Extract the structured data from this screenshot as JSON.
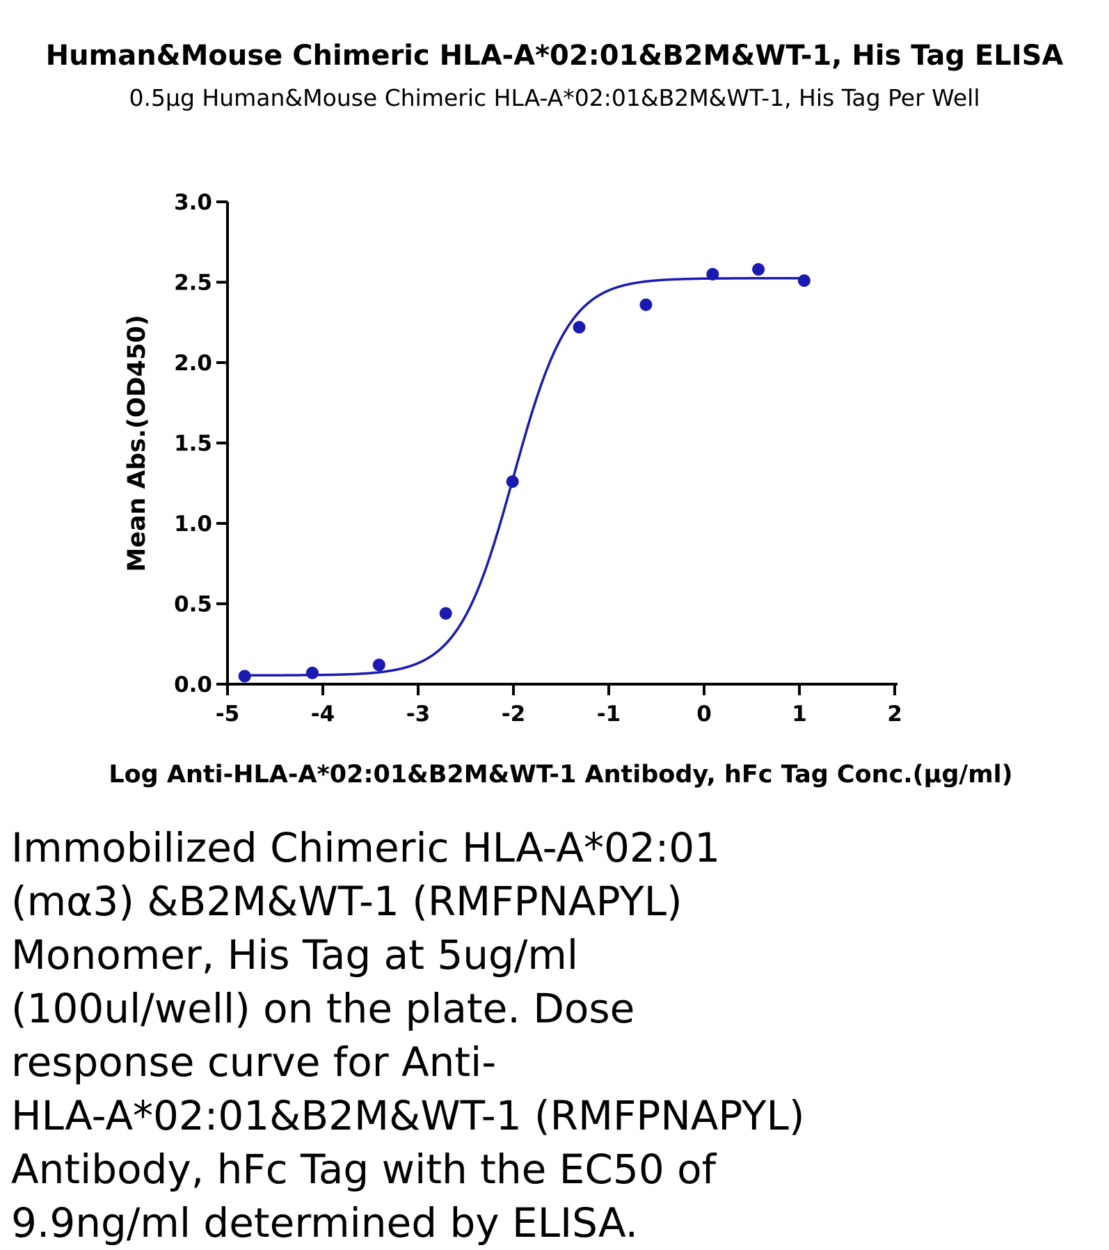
{
  "chart_data": {
    "type": "scatter",
    "title": "Human&Mouse Chimeric HLA-A*02:01&B2M&WT-1, His Tag ELISA",
    "subtitle": "0.5μg Human&Mouse Chimeric HLA-A*02:01&B2M&WT-1, His Tag Per Well",
    "xlabel": "Log Anti-HLA-A*02:01&B2M&WT-1 Antibody, hFc Tag Conc.(μg/ml)",
    "ylabel": "Mean Abs.(OD450)",
    "xlim": [
      -5,
      2
    ],
    "ylim": [
      0,
      3
    ],
    "x_ticks": [
      "-5",
      "-4",
      "-3",
      "-2",
      "-1",
      "0",
      "1",
      "2"
    ],
    "y_ticks": [
      "0.0",
      "0.5",
      "1.0",
      "1.5",
      "2.0",
      "2.5",
      "3.0"
    ],
    "grid": false,
    "color": "#1a1ab3",
    "series": [
      {
        "x": [
          -4.82,
          -4.11,
          -3.41,
          -2.71,
          -2.01,
          -1.31,
          -0.61,
          0.09,
          0.57,
          1.05
        ],
        "y": [
          0.05,
          0.07,
          0.12,
          0.44,
          1.26,
          2.22,
          2.36,
          2.55,
          2.58,
          2.51
        ],
        "fit": "4PL sigmoid",
        "fit_params": {
          "bottom": 0.055,
          "top": 2.525,
          "log_ec50": -2.0,
          "hill": 1.5
        }
      }
    ]
  },
  "caption": "Immobilized Chimeric HLA-A*02:01\n(mα3) &B2M&WT-1 (RMFPNAPYL)\nMonomer, His Tag at 5ug/ml\n(100ul/well) on the plate. Dose\nresponse curve for Anti-\nHLA-A*02:01&B2M&WT-1 (RMFPNAPYL)\nAntibody, hFc Tag with the EC50 of\n9.9ng/ml determined by ELISA."
}
